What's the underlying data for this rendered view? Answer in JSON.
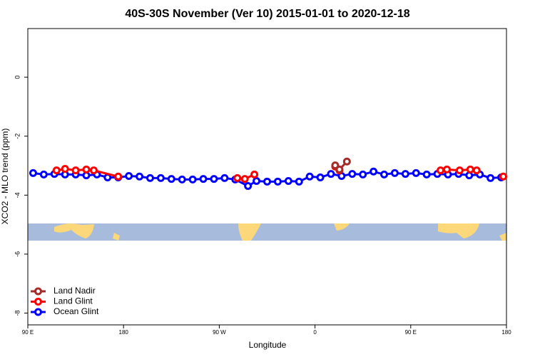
{
  "chart_data": {
    "type": "line",
    "title": "40S-30S November (Ver 10)   2015-01-01 to 2020-12-18",
    "x_label": "Longitude",
    "y_label": "XCO2 - MLO trend (ppm)",
    "xlim": [
      90,
      540
    ],
    "ylim": [
      -8.4,
      1.65
    ],
    "xticks": [
      {
        "value": 90,
        "label": "90 E"
      },
      {
        "value": 180,
        "label": "180"
      },
      {
        "value": 270,
        "label": "90 W"
      },
      {
        "value": 360,
        "label": "0"
      },
      {
        "value": 450,
        "label": "90 E"
      },
      {
        "value": 540,
        "label": "180"
      }
    ],
    "yticks": [
      0,
      -2,
      -4,
      -6,
      -8
    ],
    "legend": "bottom-left",
    "series": [
      {
        "name": "Land Nadir",
        "color": "#a52a2a",
        "x": [
          379,
          383,
          390
        ],
        "values": [
          -2.99,
          -3.13,
          -2.86
        ]
      },
      {
        "name": "Land Glint",
        "color": "#ff0000",
        "x": [
          117,
          125,
          135,
          145,
          152,
          175,
          230,
          287,
          294,
          303,
          340,
          379,
          383,
          450,
          478,
          484,
          496,
          506,
          512,
          525,
          537
        ],
        "values": [
          -3.16,
          -3.11,
          -3.16,
          -3.13,
          -3.16,
          -3.37,
          null,
          -3.42,
          -3.45,
          -3.3,
          null,
          -3.03,
          -3.16,
          null,
          -3.16,
          -3.13,
          -3.16,
          -3.13,
          -3.16,
          null,
          -3.37
        ]
      },
      {
        "name": "Ocean Glint",
        "color": "#0000ff",
        "x": [
          95,
          105,
          115,
          125,
          135,
          145,
          155,
          165,
          175,
          185,
          195,
          205,
          215,
          225,
          235,
          245,
          255,
          265,
          275,
          285,
          297,
          305,
          315,
          325,
          335,
          345,
          355,
          365,
          375,
          385,
          395,
          405,
          415,
          425,
          435,
          445,
          455,
          465,
          475,
          485,
          495,
          505,
          515,
          525,
          535
        ],
        "values": [
          -3.25,
          -3.3,
          -3.28,
          -3.3,
          -3.3,
          -3.33,
          -3.3,
          -3.4,
          -3.4,
          -3.35,
          -3.37,
          -3.42,
          -3.42,
          -3.45,
          -3.47,
          -3.47,
          -3.45,
          -3.45,
          -3.42,
          -3.47,
          -3.69,
          -3.52,
          -3.54,
          -3.54,
          -3.52,
          -3.54,
          -3.37,
          -3.4,
          -3.28,
          -3.35,
          -3.28,
          -3.3,
          -3.2,
          -3.3,
          -3.25,
          -3.28,
          -3.25,
          -3.3,
          -3.28,
          -3.3,
          -3.28,
          -3.33,
          -3.3,
          -3.42,
          -3.4
        ]
      }
    ]
  }
}
